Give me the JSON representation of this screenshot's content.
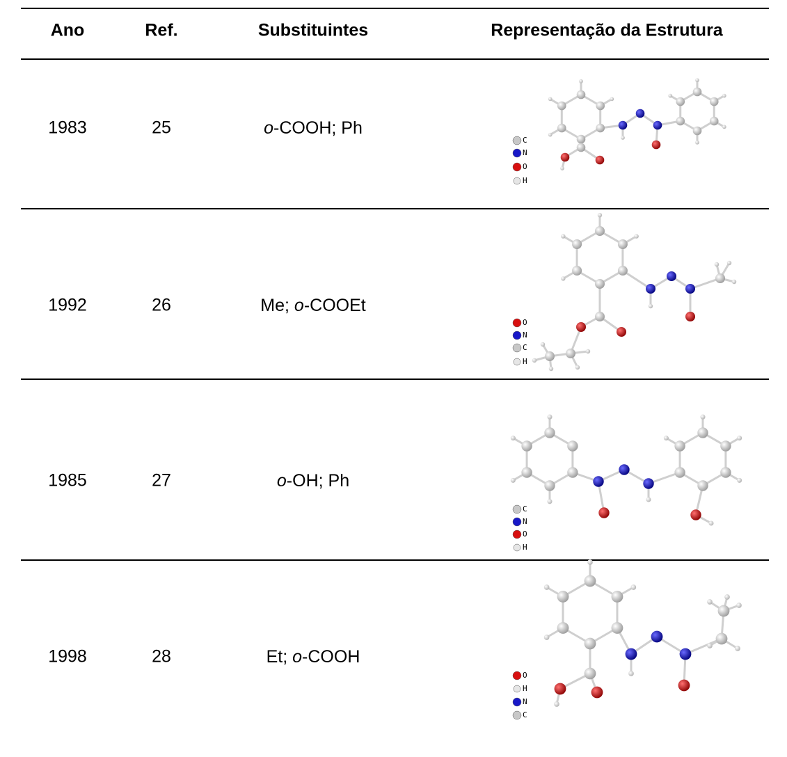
{
  "table": {
    "columns": [
      "Ano",
      "Ref.",
      "Substituintes",
      "Representação da Estrutura"
    ],
    "rows": [
      {
        "year": "1983",
        "ref": "25",
        "substituents": [
          {
            "text": "o",
            "italic": true
          },
          {
            "text": "-COOH; Ph"
          }
        ],
        "legend": [
          {
            "label": "C",
            "color": "#c8c8c8"
          },
          {
            "label": "N",
            "color": "#1818c8"
          },
          {
            "label": "O",
            "color": "#d81010"
          },
          {
            "label": "H",
            "color": "#e6e6e6"
          }
        ]
      },
      {
        "year": "1992",
        "ref": "26",
        "substituents": [
          {
            "text": "Me; "
          },
          {
            "text": "o",
            "italic": true
          },
          {
            "text": "-COOEt"
          }
        ],
        "legend": [
          {
            "label": "O",
            "color": "#d81010"
          },
          {
            "label": "N",
            "color": "#1818c8"
          },
          {
            "label": "C",
            "color": "#c8c8c8"
          },
          {
            "label": "H",
            "color": "#e6e6e6"
          }
        ]
      },
      {
        "year": "1985",
        "ref": "27",
        "substituents": [
          {
            "text": "o",
            "italic": true
          },
          {
            "text": "-OH; Ph"
          }
        ],
        "legend": [
          {
            "label": "C",
            "color": "#c8c8c8"
          },
          {
            "label": "N",
            "color": "#1818c8"
          },
          {
            "label": "O",
            "color": "#d81010"
          },
          {
            "label": "H",
            "color": "#e6e6e6"
          }
        ]
      },
      {
        "year": "1998",
        "ref": "28",
        "substituents": [
          {
            "text": "Et; "
          },
          {
            "text": "o",
            "italic": true
          },
          {
            "text": "-COOH"
          }
        ],
        "legend": [
          {
            "label": "O",
            "color": "#d81010"
          },
          {
            "label": "H",
            "color": "#e6e6e6"
          },
          {
            "label": "N",
            "color": "#1818c8"
          },
          {
            "label": "C",
            "color": "#c8c8c8"
          }
        ]
      }
    ]
  }
}
